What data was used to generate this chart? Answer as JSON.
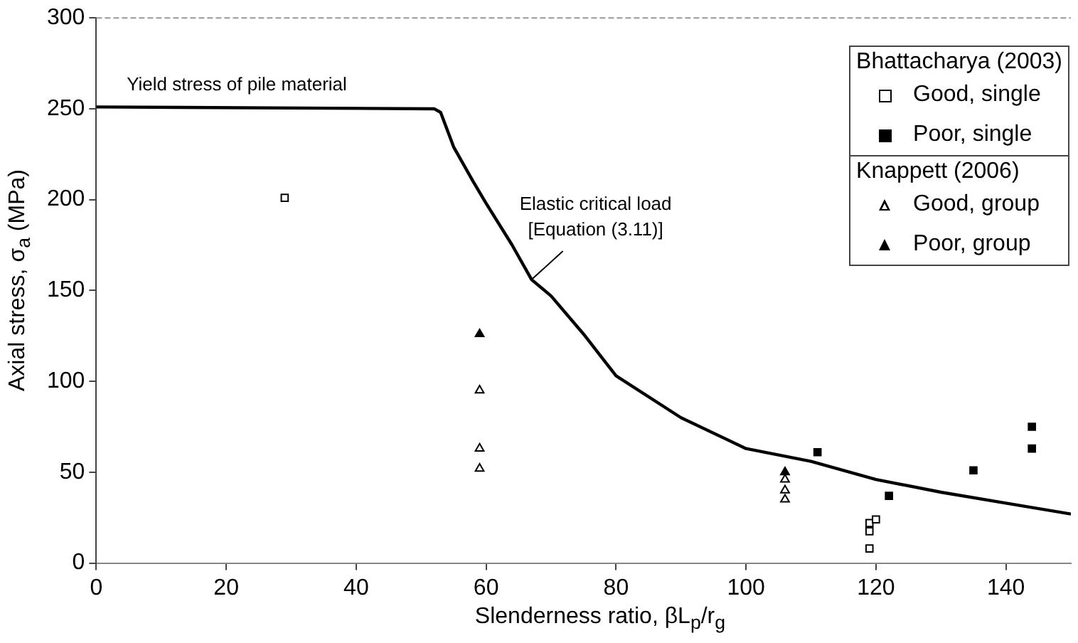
{
  "chart_data": {
    "type": "scatter",
    "xlabel": "Slenderness ratio, βL$_{p}$/r$_{g}$",
    "ylabel": "Axial stress, σ$_{a}$ (MPa)",
    "xlim": [
      0,
      150
    ],
    "xticks": [
      0,
      20,
      40,
      60,
      80,
      100,
      120,
      140
    ],
    "ylim": [
      0,
      300
    ],
    "yticks": [
      0,
      50,
      100,
      150,
      200,
      250,
      300
    ],
    "grid": false,
    "legend": "top right",
    "series": [
      {
        "type": "line",
        "color": "#000000",
        "marker": "none",
        "line_style": "solid",
        "x": [
          0,
          52,
          53,
          55,
          58,
          60,
          64,
          67,
          70,
          75,
          80,
          90,
          100,
          110,
          120,
          130,
          140,
          150
        ],
        "values": [
          251,
          250,
          248,
          229,
          210,
          198,
          175,
          156,
          147,
          126,
          103,
          80,
          63,
          56,
          46,
          39,
          33,
          27
        ]
      },
      {
        "name": "Good, single",
        "color": "#ffffff",
        "marker": "square",
        "x": [
          29,
          119,
          119,
          119,
          120
        ],
        "values": [
          201,
          22,
          17.5,
          8,
          24
        ]
      },
      {
        "name": "Poor, single",
        "color": "#000000",
        "marker": "square",
        "x": [
          111,
          122,
          135,
          144,
          144
        ],
        "values": [
          61,
          37,
          51,
          75,
          63
        ]
      },
      {
        "name": "Good, group",
        "color": "#ffffff",
        "marker": "triangle",
        "x": [
          59,
          59,
          59,
          106,
          106,
          106
        ],
        "values": [
          95,
          63,
          52,
          46,
          40,
          35
        ]
      },
      {
        "name": "Poor, group",
        "color": "#000000",
        "marker": "triangle",
        "x": [
          59,
          106
        ],
        "values": [
          126,
          50
        ]
      }
    ],
    "annotations": [
      {
        "text": "Yield stress of pile material",
        "x": 20,
        "y": 250
      },
      {
        "text": "Elastic critical load\n[Equation (3.11)]",
        "x": 67,
        "y": 156
      },
      "Bhattacharya (2003)",
      "Knappett (2006)"
    ]
  }
}
